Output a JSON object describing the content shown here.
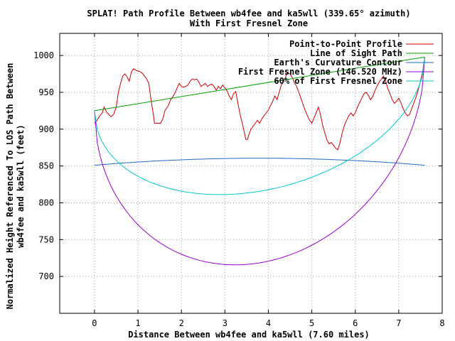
{
  "chart_data": {
    "type": "line",
    "title": "SPLAT! Path Profile Between wb4fee and ka5wll (339.65° azimuth)",
    "subtitle": "With First Fresnel Zone",
    "xlabel": "Distance Between wb4fee and ka5wll (7.60 miles)",
    "ylabel_line1": "Normalized Height Referenced To LOS Path Between",
    "ylabel_line2": "wb4fee and ka5wll (feet)",
    "xlim": [
      -0.8,
      8
    ],
    "ylim": [
      650,
      1030
    ],
    "x_ticks": [
      "0",
      "1",
      "2",
      "3",
      "4",
      "5",
      "6",
      "7",
      "8"
    ],
    "y_ticks": [
      "700",
      "750",
      "800",
      "850",
      "900",
      "950",
      "1000"
    ],
    "grid": true,
    "legend_position": "top-right",
    "series": [
      {
        "name": "Point-to-Point Profile",
        "color": "#cc0000",
        "points": [
          [
            0.0,
            908
          ],
          [
            0.06,
            912
          ],
          [
            0.12,
            918
          ],
          [
            0.18,
            922
          ],
          [
            0.22,
            930
          ],
          [
            0.28,
            923
          ],
          [
            0.33,
            920
          ],
          [
            0.38,
            917
          ],
          [
            0.44,
            920
          ],
          [
            0.5,
            930
          ],
          [
            0.55,
            950
          ],
          [
            0.6,
            962
          ],
          [
            0.65,
            972
          ],
          [
            0.7,
            975
          ],
          [
            0.75,
            971
          ],
          [
            0.8,
            965
          ],
          [
            0.85,
            978
          ],
          [
            0.9,
            982
          ],
          [
            0.95,
            980
          ],
          [
            1.0,
            979
          ],
          [
            1.05,
            978
          ],
          [
            1.1,
            976
          ],
          [
            1.15,
            972
          ],
          [
            1.2,
            968
          ],
          [
            1.25,
            962
          ],
          [
            1.3,
            940
          ],
          [
            1.35,
            922
          ],
          [
            1.38,
            908
          ],
          [
            1.45,
            908
          ],
          [
            1.52,
            908
          ],
          [
            1.58,
            915
          ],
          [
            1.62,
            925
          ],
          [
            1.7,
            932
          ],
          [
            1.75,
            940
          ],
          [
            1.8,
            944
          ],
          [
            1.86,
            950
          ],
          [
            1.9,
            956
          ],
          [
            1.95,
            962
          ],
          [
            2.0,
            958
          ],
          [
            2.05,
            957
          ],
          [
            2.1,
            958
          ],
          [
            2.15,
            960
          ],
          [
            2.2,
            965
          ],
          [
            2.25,
            968
          ],
          [
            2.3,
            967
          ],
          [
            2.35,
            968
          ],
          [
            2.4,
            964
          ],
          [
            2.45,
            958
          ],
          [
            2.5,
            960
          ],
          [
            2.55,
            962
          ],
          [
            2.6,
            958
          ],
          [
            2.65,
            960
          ],
          [
            2.7,
            961
          ],
          [
            2.75,
            958
          ],
          [
            2.8,
            953
          ],
          [
            2.85,
            958
          ],
          [
            2.9,
            955
          ],
          [
            2.95,
            960
          ],
          [
            3.0,
            956
          ],
          [
            3.05,
            952
          ],
          [
            3.1,
            945
          ],
          [
            3.15,
            940
          ],
          [
            3.2,
            948
          ],
          [
            3.25,
            951
          ],
          [
            3.3,
            935
          ],
          [
            3.35,
            920
          ],
          [
            3.4,
            908
          ],
          [
            3.45,
            895
          ],
          [
            3.48,
            886
          ],
          [
            3.52,
            886
          ],
          [
            3.55,
            892
          ],
          [
            3.6,
            900
          ],
          [
            3.65,
            904
          ],
          [
            3.7,
            908
          ],
          [
            3.75,
            912
          ],
          [
            3.8,
            908
          ],
          [
            3.85,
            914
          ],
          [
            3.9,
            918
          ],
          [
            3.95,
            922
          ],
          [
            4.0,
            926
          ],
          [
            4.05,
            932
          ],
          [
            4.1,
            938
          ],
          [
            4.15,
            945
          ],
          [
            4.2,
            940
          ],
          [
            4.25,
            950
          ],
          [
            4.3,
            960
          ],
          [
            4.35,
            965
          ],
          [
            4.4,
            971
          ],
          [
            4.42,
            976
          ],
          [
            4.5,
            975
          ],
          [
            4.55,
            970
          ],
          [
            4.6,
            963
          ],
          [
            4.65,
            958
          ],
          [
            4.7,
            950
          ],
          [
            4.75,
            942
          ],
          [
            4.8,
            933
          ],
          [
            4.85,
            925
          ],
          [
            4.9,
            918
          ],
          [
            4.95,
            912
          ],
          [
            5.0,
            908
          ],
          [
            5.05,
            915
          ],
          [
            5.1,
            922
          ],
          [
            5.15,
            930
          ],
          [
            5.2,
            920
          ],
          [
            5.25,
            905
          ],
          [
            5.3,
            895
          ],
          [
            5.35,
            885
          ],
          [
            5.4,
            880
          ],
          [
            5.45,
            882
          ],
          [
            5.5,
            878
          ],
          [
            5.55,
            874
          ],
          [
            5.6,
            872
          ],
          [
            5.65,
            882
          ],
          [
            5.7,
            895
          ],
          [
            5.75,
            905
          ],
          [
            5.8,
            912
          ],
          [
            5.85,
            918
          ],
          [
            5.9,
            922
          ],
          [
            5.95,
            918
          ],
          [
            6.0,
            922
          ],
          [
            6.05,
            930
          ],
          [
            6.1,
            936
          ],
          [
            6.15,
            942
          ],
          [
            6.2,
            948
          ],
          [
            6.25,
            950
          ],
          [
            6.3,
            946
          ],
          [
            6.35,
            940
          ],
          [
            6.4,
            944
          ],
          [
            6.45,
            952
          ],
          [
            6.5,
            958
          ],
          [
            6.55,
            964
          ],
          [
            6.6,
            968
          ],
          [
            6.65,
            972
          ],
          [
            6.7,
            965
          ],
          [
            6.75,
            955
          ],
          [
            6.8,
            948
          ],
          [
            6.85,
            940
          ],
          [
            6.9,
            935
          ],
          [
            6.95,
            938
          ],
          [
            7.0,
            942
          ],
          [
            7.05,
            936
          ],
          [
            7.1,
            928
          ],
          [
            7.15,
            922
          ],
          [
            7.2,
            918
          ],
          [
            7.25,
            920
          ],
          [
            7.3,
            928
          ],
          [
            7.35,
            936
          ],
          [
            7.4,
            944
          ],
          [
            7.45,
            954
          ],
          [
            7.5,
            965
          ],
          [
            7.55,
            978
          ],
          [
            7.6,
            998
          ]
        ]
      },
      {
        "name": "Line of Sight Path",
        "color": "#00a000",
        "points": [
          [
            0.0,
            925
          ],
          [
            7.6,
            998
          ]
        ]
      },
      {
        "name": "Earth's Curvature Contour",
        "color": "#1c6cc9",
        "function": "curvature",
        "base": 851,
        "peak": 860.5
      },
      {
        "name": "First Fresnel Zone (146.520 MHz)",
        "color": "#9a00d0",
        "function": "fresnel",
        "radius_ft": 243
      },
      {
        "name": "60% of First Fresnel Zone",
        "color": "#00c8d0",
        "function": "fresnel",
        "radius_ft": 145.8
      }
    ]
  }
}
